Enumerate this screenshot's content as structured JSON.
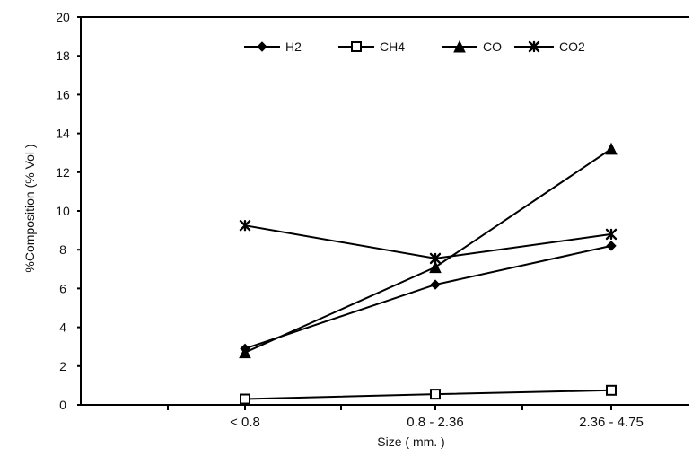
{
  "chart_data": {
    "type": "line",
    "title": "",
    "xlabel": "Size ( mm. )",
    "ylabel": "%Composition  (% Vol )",
    "categories": [
      "< 0.8",
      "0.8 - 2.36",
      "2.36 - 4.75"
    ],
    "ylim": [
      0,
      20
    ],
    "yticks": [
      0,
      2,
      4,
      6,
      8,
      10,
      12,
      14,
      16,
      18,
      20
    ],
    "grid": false,
    "legend_position": "top-center",
    "series": [
      {
        "name": "H2",
        "marker": "diamond",
        "color": "#000000",
        "values": [
          2.9,
          6.2,
          8.2
        ]
      },
      {
        "name": "CH4",
        "marker": "square-open",
        "color": "#000000",
        "values": [
          0.3,
          0.55,
          0.75
        ]
      },
      {
        "name": "CO",
        "marker": "triangle",
        "color": "#000000",
        "values": [
          2.7,
          7.1,
          13.2
        ]
      },
      {
        "name": "CO2",
        "marker": "x-star",
        "color": "#000000",
        "values": [
          9.25,
          7.55,
          8.8
        ]
      }
    ]
  }
}
